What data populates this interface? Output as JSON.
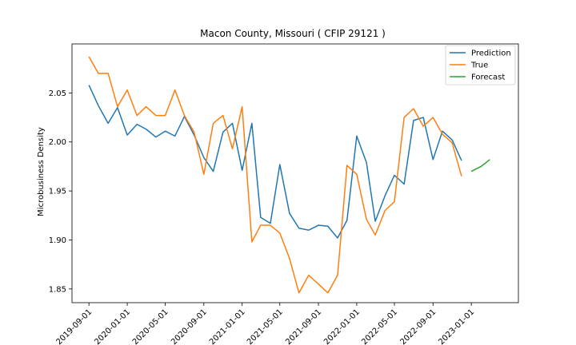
{
  "chart_data": {
    "type": "line",
    "title": "Macon County, Missouri ( CFIP 29121 )",
    "xlabel": "",
    "ylabel": "Microbusiness Density",
    "ylim": [
      1.836,
      2.1
    ],
    "xlim": [
      "2019-07-09",
      "2023-05-31"
    ],
    "yticks": [
      1.85,
      1.9,
      1.95,
      2.0,
      2.05
    ],
    "xticks": [
      "2019-09-01",
      "2020-01-01",
      "2020-05-01",
      "2020-09-01",
      "2021-01-01",
      "2021-05-01",
      "2021-09-01",
      "2022-01-01",
      "2022-05-01",
      "2022-09-01",
      "2023-01-01"
    ],
    "legend": "top-right",
    "grid": false,
    "series": [
      {
        "name": "Prediction",
        "color": "#1f77b4",
        "x": [
          "2019-09-01",
          "2019-10-01",
          "2019-11-01",
          "2019-12-01",
          "2020-01-01",
          "2020-02-01",
          "2020-03-01",
          "2020-04-01",
          "2020-05-01",
          "2020-06-01",
          "2020-07-01",
          "2020-08-01",
          "2020-09-01",
          "2020-10-01",
          "2020-11-01",
          "2020-12-01",
          "2021-01-01",
          "2021-02-01",
          "2021-03-01",
          "2021-04-01",
          "2021-05-01",
          "2021-06-01",
          "2021-07-01",
          "2021-08-01",
          "2021-09-01",
          "2021-10-01",
          "2021-11-01",
          "2021-12-01",
          "2022-01-01",
          "2022-02-01",
          "2022-03-01",
          "2022-04-01",
          "2022-05-01",
          "2022-06-01",
          "2022-07-01",
          "2022-08-01",
          "2022-09-01",
          "2022-10-01",
          "2022-11-01",
          "2022-12-01"
        ],
        "values": [
          2.058,
          2.037,
          2.019,
          2.035,
          2.007,
          2.018,
          2.013,
          2.005,
          2.011,
          2.006,
          2.026,
          2.007,
          1.984,
          1.97,
          2.01,
          2.019,
          1.971,
          2.019,
          1.923,
          1.917,
          1.977,
          1.927,
          1.912,
          1.91,
          1.915,
          1.914,
          1.902,
          1.92,
          2.006,
          1.979,
          1.919,
          1.945,
          1.966,
          1.957,
          2.022,
          2.025,
          1.982,
          2.011,
          2.002,
          1.981
        ]
      },
      {
        "name": "True",
        "color": "#ff7f0e",
        "x": [
          "2019-09-01",
          "2019-10-01",
          "2019-11-01",
          "2019-12-01",
          "2020-01-01",
          "2020-02-01",
          "2020-03-01",
          "2020-04-01",
          "2020-05-01",
          "2020-06-01",
          "2020-07-01",
          "2020-08-01",
          "2020-09-01",
          "2020-10-01",
          "2020-11-01",
          "2020-12-01",
          "2021-01-01",
          "2021-02-01",
          "2021-03-01",
          "2021-04-01",
          "2021-05-01",
          "2021-06-01",
          "2021-07-01",
          "2021-08-01",
          "2021-09-01",
          "2021-10-01",
          "2021-11-01",
          "2021-12-01",
          "2022-01-01",
          "2022-02-01",
          "2022-03-01",
          "2022-04-01",
          "2022-05-01",
          "2022-06-01",
          "2022-07-01",
          "2022-08-01",
          "2022-09-01",
          "2022-10-01",
          "2022-11-01",
          "2022-12-01"
        ],
        "values": [
          2.087,
          2.07,
          2.07,
          2.036,
          2.053,
          2.027,
          2.036,
          2.027,
          2.027,
          2.053,
          2.027,
          2.01,
          1.967,
          2.019,
          2.027,
          1.993,
          2.036,
          1.898,
          1.915,
          1.915,
          1.907,
          1.881,
          1.846,
          1.864,
          1.855,
          1.846,
          1.864,
          1.976,
          1.967,
          1.921,
          1.905,
          1.93,
          1.939,
          2.025,
          2.034,
          2.016,
          2.025,
          2.008,
          1.999,
          1.965
        ]
      },
      {
        "name": "Forecast",
        "color": "#2ca02c",
        "x": [
          "2023-01-01",
          "2023-02-01",
          "2023-03-01"
        ],
        "values": [
          1.97,
          1.975,
          1.982
        ]
      }
    ]
  }
}
